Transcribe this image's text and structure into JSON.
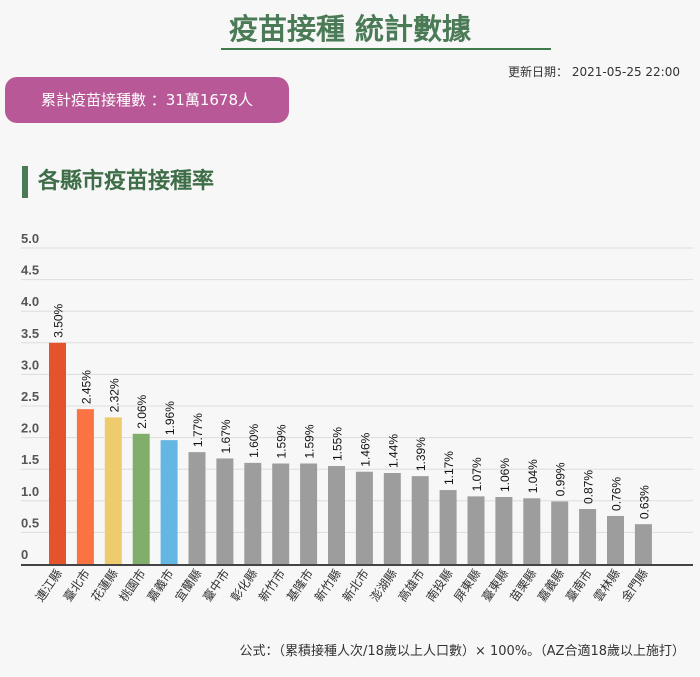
{
  "header": {
    "title": "疫苗接種 統計數據",
    "updated": "更新日期： 2021-05-25 22:00"
  },
  "summary": {
    "total": "累計疫苗接種數 ：31萬1678人"
  },
  "section": {
    "title": "各縣市疫苗接種率"
  },
  "footer": {
    "formula": "公式：（累積接種人次/18歲以上人口數）× 100%。（AZ合適18歲以上施打）"
  },
  "chart_data": {
    "type": "bar",
    "title": "",
    "xlabel": "",
    "ylabel": "",
    "ylim": [
      0,
      5
    ],
    "yticks": [
      "0",
      "0.5",
      "1.0",
      "1.5",
      "2.0",
      "2.5",
      "3.0",
      "3.5",
      "4.0",
      "4.5",
      "5.0"
    ],
    "grid": true,
    "categories": [
      "連江縣",
      "臺北市",
      "花蓮縣",
      "桃園市",
      "嘉義市",
      "宜蘭縣",
      "臺中市",
      "彰化縣",
      "新竹市",
      "基隆市",
      "新竹縣",
      "新北市",
      "澎湖縣",
      "高雄市",
      "南投縣",
      "屏東縣",
      "臺東縣",
      "苗栗縣",
      "嘉義縣",
      "臺南市",
      "雲林縣",
      "金門縣"
    ],
    "values": [
      3.5,
      2.45,
      2.32,
      2.06,
      1.96,
      1.77,
      1.67,
      1.6,
      1.59,
      1.59,
      1.55,
      1.46,
      1.44,
      1.39,
      1.17,
      1.07,
      1.06,
      1.04,
      0.99,
      0.87,
      0.76,
      0.63
    ],
    "labels": [
      "3.50%",
      "2.45%",
      "2.32%",
      "2.06%",
      "1.96%",
      "1.77%",
      "1.67%",
      "1.60%",
      "1.59%",
      "1.59%",
      "1.55%",
      "1.46%",
      "1.44%",
      "1.39%",
      "1.17%",
      "1.07%",
      "1.06%",
      "1.04%",
      "0.99%",
      "0.87%",
      "0.76%",
      "0.63%"
    ],
    "colors": [
      "#e5532d",
      "#fb7243",
      "#eecb6c",
      "#82ae6c",
      "#64b7e3",
      "#9d9d9d"
    ]
  }
}
